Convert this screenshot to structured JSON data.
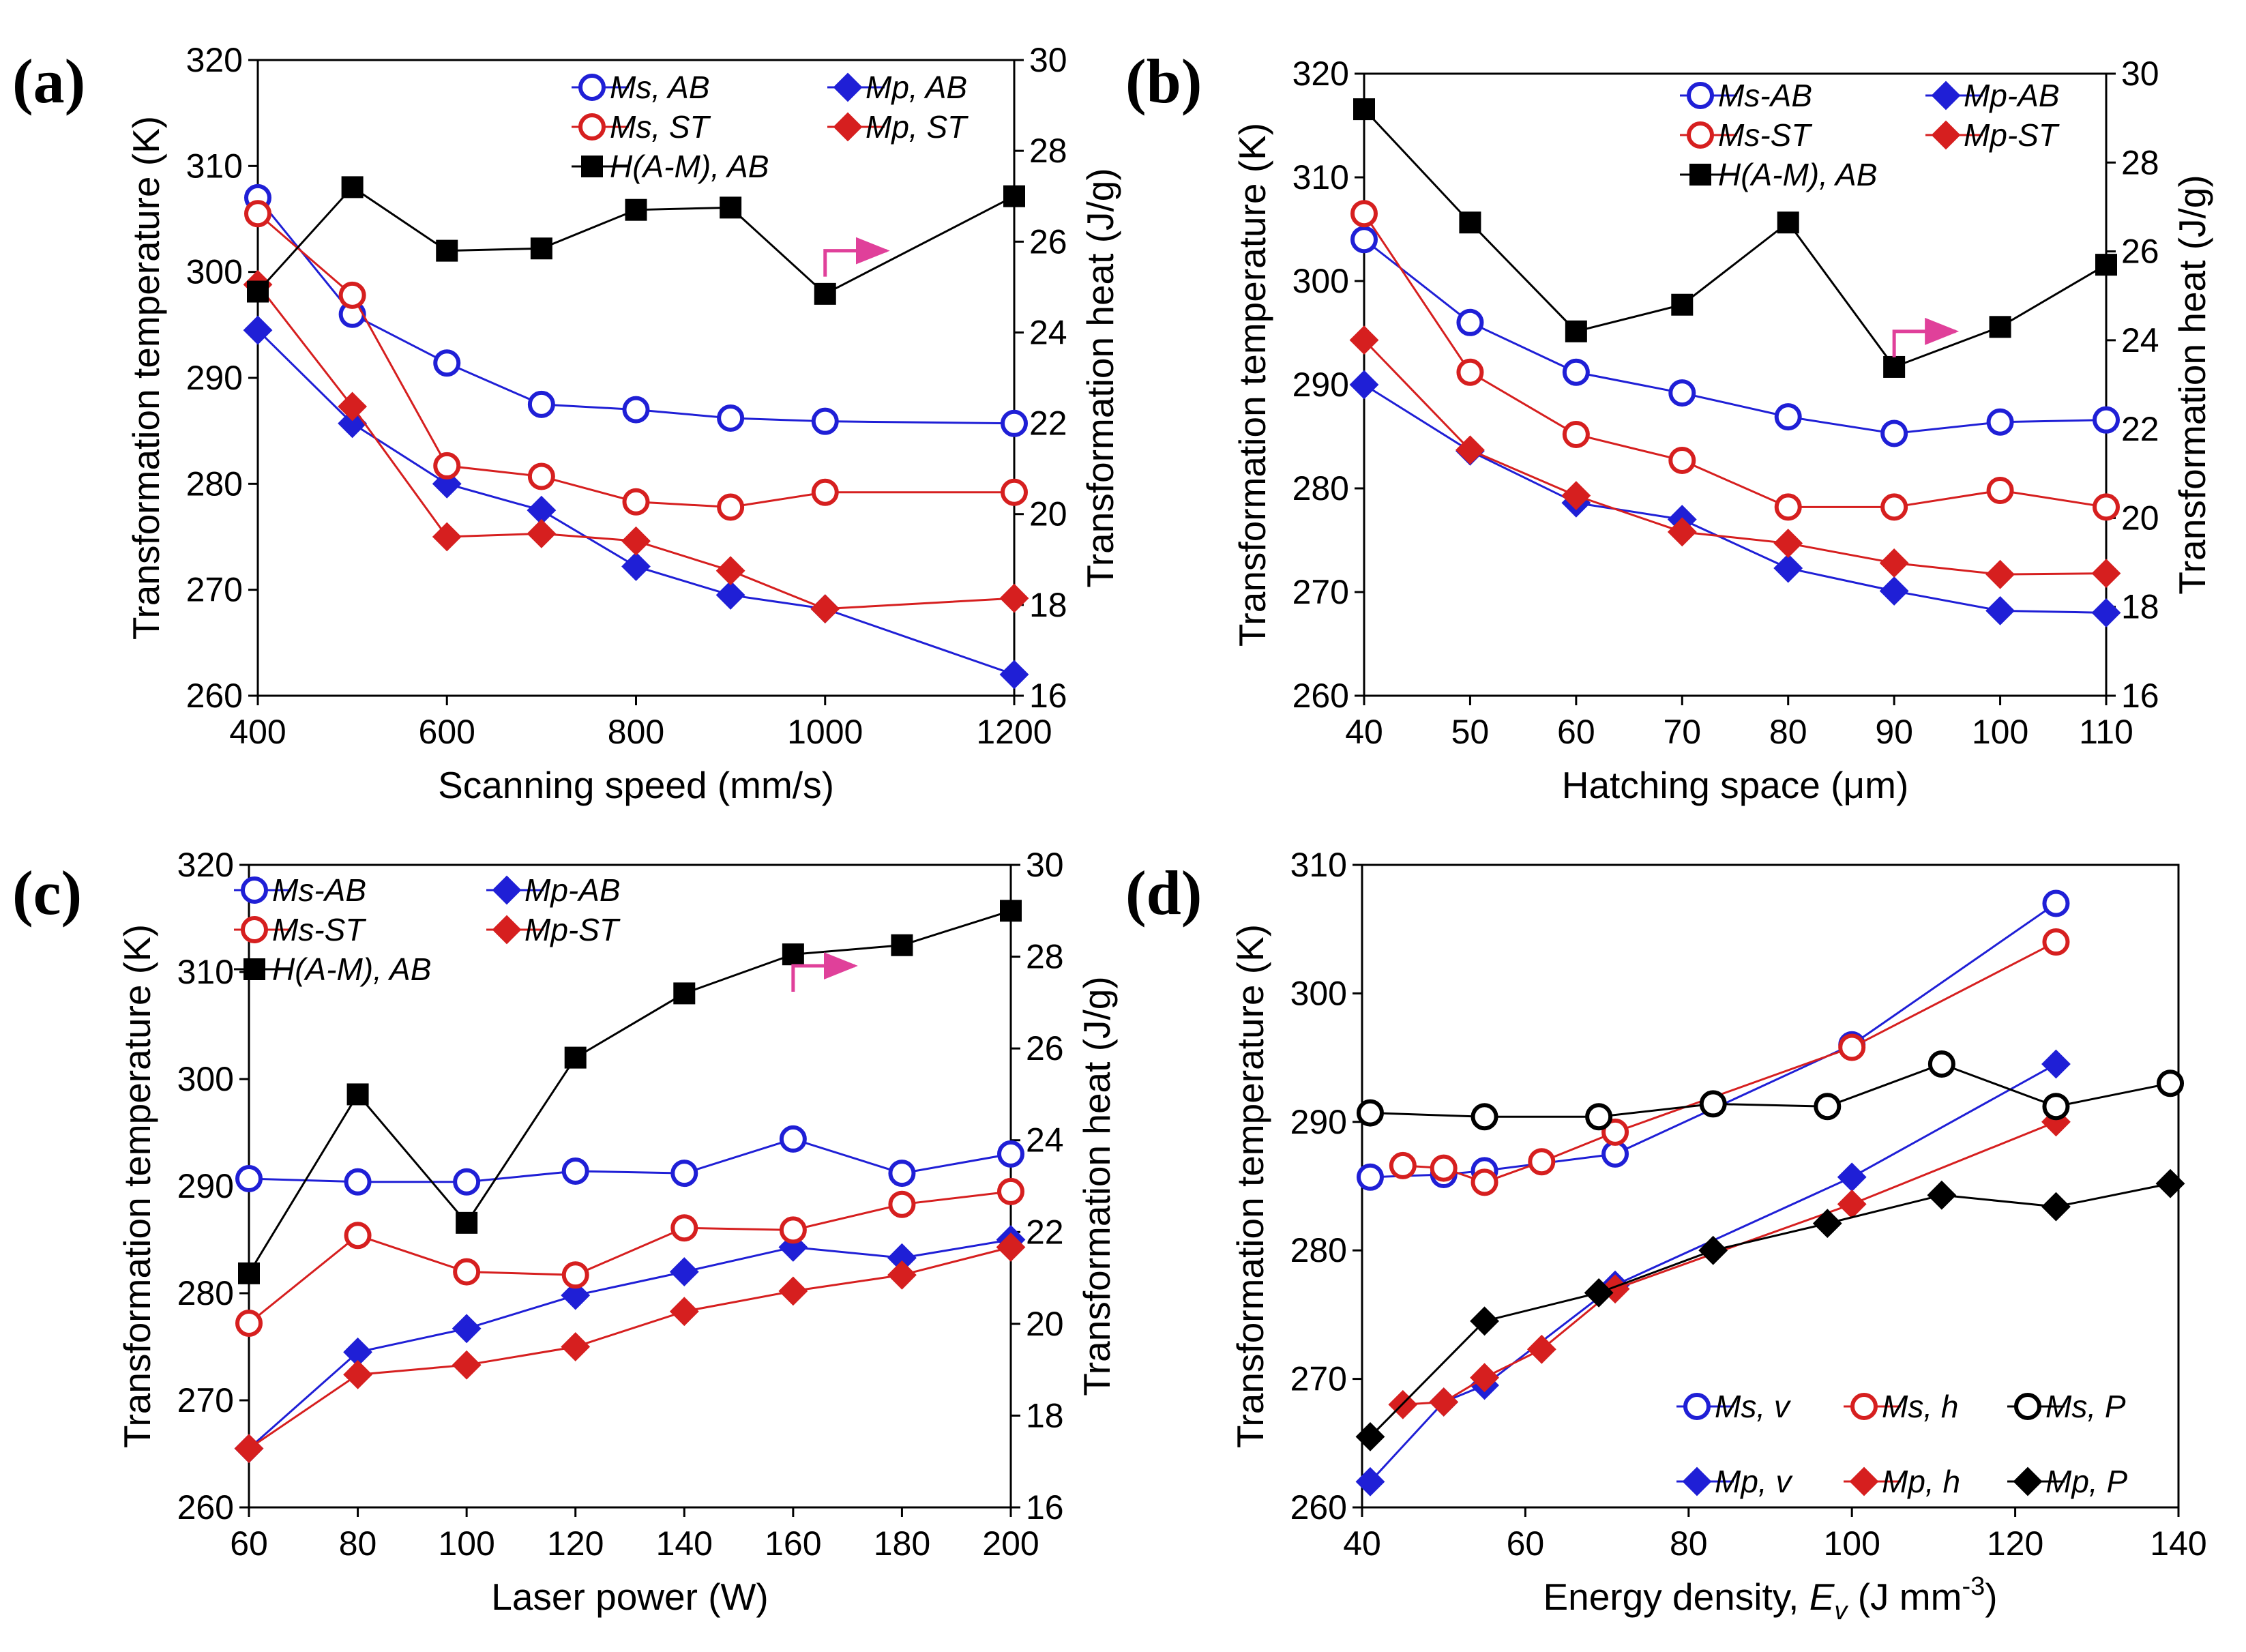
{
  "figure": {
    "panels": [
      "a",
      "b",
      "c",
      "d"
    ]
  },
  "chart_data": [
    {
      "panel_label": "(a)",
      "type": "line",
      "xlabel": "Scanning speed (mm/s)",
      "ylabel": "Transformation temperature (K)",
      "y2label": "Transformation heat (J/g)",
      "xlim": [
        400,
        1200
      ],
      "xticks": [
        400,
        600,
        800,
        1000,
        1200
      ],
      "ylim": [
        260,
        320
      ],
      "yticks": [
        260,
        270,
        280,
        290,
        300,
        310,
        320
      ],
      "y2lim": [
        16,
        30
      ],
      "y2ticks": [
        16,
        18,
        20,
        22,
        24,
        26,
        28,
        30
      ],
      "legend_columns": 2,
      "series": [
        {
          "name": "Ms, AB",
          "color": "#1f1fd6",
          "marker": "circle-open",
          "axis": "left",
          "x": [
            400,
            500,
            600,
            700,
            800,
            900,
            1000,
            1200
          ],
          "y": [
            307,
            296,
            291.4,
            287.5,
            287,
            286.2,
            285.9,
            285.7
          ]
        },
        {
          "name": "Mp, AB",
          "color": "#1f1fd6",
          "marker": "diamond",
          "axis": "left",
          "x": [
            400,
            500,
            600,
            700,
            800,
            900,
            1000,
            1200
          ],
          "y": [
            294.5,
            285.7,
            280,
            277.5,
            272.2,
            269.5,
            268.2,
            262
          ]
        },
        {
          "name": "Ms, ST",
          "color": "#d61f1f",
          "marker": "circle-open",
          "axis": "left",
          "x": [
            400,
            500,
            600,
            700,
            800,
            900,
            1000,
            1200
          ],
          "y": [
            305.5,
            297.8,
            281.7,
            280.7,
            278.3,
            277.8,
            279.2,
            279.2
          ]
        },
        {
          "name": "Mp, ST",
          "color": "#d61f1f",
          "marker": "diamond",
          "axis": "left",
          "x": [
            400,
            500,
            600,
            700,
            800,
            900,
            1000,
            1200
          ],
          "y": [
            298.8,
            287.3,
            275,
            275.3,
            274.6,
            271.8,
            268.2,
            269.2
          ]
        },
        {
          "name": "H(A-M), AB",
          "color": "#000000",
          "marker": "square",
          "axis": "right",
          "x": [
            400,
            500,
            600,
            700,
            800,
            900,
            1000,
            1200
          ],
          "y": [
            24.9,
            27.2,
            25.8,
            25.85,
            26.7,
            26.75,
            24.85,
            27
          ]
        }
      ],
      "arrow": {
        "x": 1000,
        "y2": 25.8
      }
    },
    {
      "panel_label": "(b)",
      "type": "line",
      "xlabel": "Hatching space (μm)",
      "ylabel": "Transformation temperature (K)",
      "y2label": "Transformation heat (J/g)",
      "xlim": [
        40,
        110
      ],
      "xticks": [
        40,
        50,
        60,
        70,
        80,
        90,
        100,
        110
      ],
      "ylim": [
        260,
        320
      ],
      "yticks": [
        260,
        270,
        280,
        290,
        300,
        310,
        320
      ],
      "y2lim": [
        16,
        30
      ],
      "y2ticks": [
        16,
        18,
        20,
        22,
        24,
        26,
        28,
        30
      ],
      "legend_columns": 2,
      "series": [
        {
          "name": "Ms-AB",
          "color": "#1f1fd6",
          "marker": "circle-open",
          "axis": "left",
          "x": [
            40,
            50,
            60,
            70,
            80,
            90,
            100,
            110
          ],
          "y": [
            304,
            296,
            291.2,
            289.2,
            286.9,
            285.3,
            286.4,
            286.6
          ]
        },
        {
          "name": "Mp-AB",
          "color": "#1f1fd6",
          "marker": "diamond",
          "axis": "left",
          "x": [
            40,
            50,
            60,
            70,
            80,
            90,
            100,
            110
          ],
          "y": [
            290,
            283.6,
            278.6,
            277,
            272.3,
            270.1,
            268.2,
            268
          ]
        },
        {
          "name": "Ms-ST",
          "color": "#d61f1f",
          "marker": "circle-open",
          "axis": "left",
          "x": [
            40,
            50,
            60,
            70,
            80,
            90,
            100,
            110
          ],
          "y": [
            306.5,
            291.2,
            285.2,
            282.7,
            278.2,
            278.2,
            279.8,
            278.2
          ]
        },
        {
          "name": "Mp-ST",
          "color": "#d61f1f",
          "marker": "diamond",
          "axis": "left",
          "x": [
            40,
            50,
            60,
            70,
            80,
            90,
            100,
            110
          ],
          "y": [
            294.3,
            283.7,
            279.3,
            275.8,
            274.7,
            272.8,
            271.7,
            271.8
          ]
        },
        {
          "name": "H(A-M), AB",
          "color": "#000000",
          "marker": "square",
          "axis": "right",
          "x": [
            40,
            50,
            60,
            70,
            80,
            90,
            100,
            110
          ],
          "y": [
            29.2,
            26.65,
            24.2,
            24.8,
            26.65,
            23.4,
            24.3,
            25.7
          ]
        }
      ],
      "arrow": {
        "x": 90,
        "y2": 24.2
      }
    },
    {
      "panel_label": "(c)",
      "type": "line",
      "xlabel": "Laser power (W)",
      "ylabel": "Transformation temperature (K)",
      "y2label": "Transformation heat (J/g)",
      "xlim": [
        60,
        200
      ],
      "xticks": [
        60,
        80,
        100,
        120,
        140,
        160,
        180,
        200
      ],
      "ylim": [
        260,
        320
      ],
      "yticks": [
        260,
        270,
        280,
        290,
        300,
        310,
        320
      ],
      "y2lim": [
        16,
        30
      ],
      "y2ticks": [
        16,
        18,
        20,
        22,
        24,
        26,
        28,
        30
      ],
      "legend_columns": 2,
      "series": [
        {
          "name": "Ms-AB",
          "color": "#1f1fd6",
          "marker": "circle-open",
          "axis": "left",
          "x": [
            60,
            80,
            100,
            120,
            140,
            160,
            180,
            200
          ],
          "y": [
            290.7,
            290.4,
            290.4,
            291.4,
            291.2,
            294.4,
            291.2,
            293
          ]
        },
        {
          "name": "Mp-AB",
          "color": "#1f1fd6",
          "marker": "diamond",
          "axis": "left",
          "x": [
            60,
            80,
            100,
            120,
            140,
            160,
            180,
            200
          ],
          "y": [
            265.5,
            274.5,
            276.7,
            279.8,
            282,
            284.3,
            283.3,
            285
          ]
        },
        {
          "name": "Ms-ST",
          "color": "#d61f1f",
          "marker": "circle-open",
          "axis": "left",
          "x": [
            60,
            80,
            100,
            120,
            140,
            160,
            180,
            200
          ],
          "y": [
            277.2,
            285.4,
            282,
            281.7,
            286.1,
            285.9,
            288.3,
            289.5
          ]
        },
        {
          "name": "Mp-ST",
          "color": "#d61f1f",
          "marker": "diamond",
          "axis": "left",
          "x": [
            60,
            80,
            100,
            120,
            140,
            160,
            180,
            200
          ],
          "y": [
            265.5,
            272.4,
            273.3,
            275,
            278.3,
            280.2,
            281.7,
            284.3
          ]
        },
        {
          "name": "H(A-M), AB",
          "color": "#000000",
          "marker": "square",
          "axis": "right",
          "x": [
            60,
            80,
            100,
            120,
            140,
            160,
            180,
            200
          ],
          "y": [
            21.1,
            25,
            22.2,
            25.8,
            27.2,
            28.05,
            28.25,
            29
          ]
        }
      ],
      "arrow": {
        "x": 160,
        "y2": 27.8
      }
    },
    {
      "panel_label": "(d)",
      "type": "line",
      "xlabel": "Energy density, ",
      "xlabel_symbol": "E",
      "xlabel_subscript": "v",
      "xlabel_unit": " (J mm",
      "xlabel_sup": "-3",
      "xlabel_end": ")",
      "ylabel": "Transformation temperature (K)",
      "xlim": [
        40,
        140
      ],
      "xticks": [
        40,
        60,
        80,
        100,
        120,
        140
      ],
      "ylim": [
        260,
        310
      ],
      "yticks": [
        260,
        270,
        280,
        290,
        300,
        310
      ],
      "legend_columns": 3,
      "legend_position": "bottom-right",
      "series": [
        {
          "name": "Ms, v",
          "color": "#1f1fd6",
          "marker": "circle-open",
          "x": [
            41,
            50,
            55,
            71,
            100,
            125
          ],
          "y": [
            285.7,
            285.9,
            286.2,
            287.5,
            296,
            307
          ]
        },
        {
          "name": "Mp, v",
          "color": "#1f1fd6",
          "marker": "diamond",
          "x": [
            41,
            50,
            55,
            71,
            100,
            125
          ],
          "y": [
            262,
            268.2,
            269.5,
            277.3,
            285.7,
            294.5
          ]
        },
        {
          "name": "Ms, h",
          "color": "#d61f1f",
          "marker": "circle-open",
          "x": [
            45,
            50,
            55,
            62,
            71,
            100,
            125
          ],
          "y": [
            286.6,
            286.4,
            285.3,
            286.9,
            289.2,
            295.8,
            304
          ]
        },
        {
          "name": "Mp, h",
          "color": "#d61f1f",
          "marker": "diamond",
          "x": [
            45,
            50,
            55,
            62,
            71,
            100,
            125
          ],
          "y": [
            268,
            268.2,
            270.1,
            272.3,
            277,
            283.6,
            290
          ]
        },
        {
          "name": "Ms, P",
          "color": "#000000",
          "marker": "circle-open",
          "x": [
            41,
            55,
            69,
            83,
            97,
            111,
            125,
            139
          ],
          "y": [
            290.7,
            290.4,
            290.4,
            291.4,
            291.2,
            294.5,
            291.2,
            293
          ]
        },
        {
          "name": "Mp, P",
          "color": "#000000",
          "marker": "diamond",
          "x": [
            41,
            55,
            69,
            83,
            97,
            111,
            125,
            139
          ],
          "y": [
            265.5,
            274.5,
            276.7,
            280,
            282.1,
            284.3,
            283.4,
            285.2
          ]
        }
      ]
    }
  ]
}
